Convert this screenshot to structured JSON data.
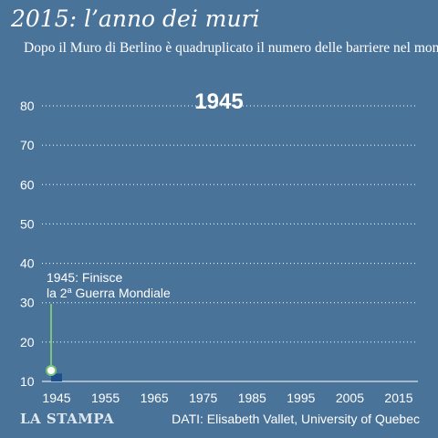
{
  "title": "2015: l’anno dei muri",
  "subtitle": "Dopo il Muro di Berlino è quadruplicato  il numero delle barriere nel mondo",
  "current_year_label": "1945",
  "annotation": {
    "line1": "1945: Finisce",
    "line2_prefix": "la 2",
    "line2_sup": "a",
    "line2_suffix": " Guerra Mondiale"
  },
  "logo": "LA STAMPA",
  "source": "DATI: Elisabeth Vallet, University of Quebec",
  "colors": {
    "background": "#4a7399",
    "gridline": "#ffffff",
    "annotation_line": "#7dc47a",
    "marker_fill": "#ffffff",
    "marker_stroke": "#7dc47a",
    "bar": "#1f4e8c"
  },
  "chart_data": {
    "type": "area",
    "x": [
      1945
    ],
    "values": [
      12
    ],
    "y_ticks": [
      80,
      70,
      60,
      50,
      40,
      30,
      20,
      10
    ],
    "x_ticks": [
      1945,
      1955,
      1965,
      1975,
      1985,
      1995,
      2005,
      2015
    ],
    "ylim": [
      10,
      85
    ],
    "xlim": [
      1945,
      2015
    ],
    "grid": true,
    "legend": "none"
  }
}
